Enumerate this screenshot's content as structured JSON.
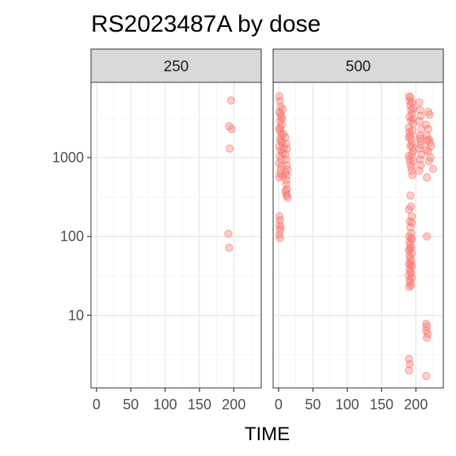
{
  "chart_data": {
    "type": "scatter",
    "title": "RS2023487A by dose",
    "xlabel": "TIME",
    "ylabel": "",
    "y_scale": "log10",
    "ylim": [
      1.2,
      9000
    ],
    "xlim": [
      -8,
      240
    ],
    "x_ticks": [
      0,
      50,
      100,
      150,
      200
    ],
    "x_tick_labels": [
      "0",
      "50",
      "100",
      "150",
      "200"
    ],
    "y_ticks": [
      10,
      100,
      1000
    ],
    "y_tick_labels": [
      "10",
      "100",
      "1000"
    ],
    "grid": true,
    "point_color": "#f8766d",
    "point_alpha": 0.35,
    "strip_fill": "#d9d9d9",
    "panels": [
      {
        "label": "250",
        "points": [
          [
            196,
            5300
          ],
          [
            193,
            2500
          ],
          [
            197,
            2300
          ],
          [
            194,
            1300
          ],
          [
            192,
            108
          ],
          [
            193,
            72
          ]
        ]
      },
      {
        "label": "500",
        "points": [
          [
            1,
            6000
          ],
          [
            2,
            5200
          ],
          [
            3,
            4400
          ],
          [
            1,
            3800
          ],
          [
            4,
            3300
          ],
          [
            2,
            2900
          ],
          [
            5,
            2600
          ],
          [
            1,
            2300
          ],
          [
            3,
            2100
          ],
          [
            4,
            1900
          ],
          [
            2,
            1700
          ],
          [
            5,
            1550
          ],
          [
            1,
            1400
          ],
          [
            3,
            1250
          ],
          [
            6,
            1150
          ],
          [
            2,
            1050
          ],
          [
            4,
            950
          ],
          [
            1,
            850
          ],
          [
            5,
            780
          ],
          [
            3,
            700
          ],
          [
            2,
            620
          ],
          [
            6,
            580
          ],
          [
            1,
            560
          ],
          [
            4,
            1600
          ],
          [
            2,
            2400
          ],
          [
            5,
            3100
          ],
          [
            3,
            3600
          ],
          [
            7,
            1300
          ],
          [
            6,
            4100
          ],
          [
            7,
            2000
          ],
          [
            10,
            1800
          ],
          [
            11,
            1500
          ],
          [
            12,
            1300
          ],
          [
            10,
            1100
          ],
          [
            11,
            950
          ],
          [
            12,
            800
          ],
          [
            13,
            700
          ],
          [
            10,
            650
          ],
          [
            11,
            460
          ],
          [
            12,
            400
          ],
          [
            10,
            380
          ],
          [
            11,
            350
          ],
          [
            12,
            330
          ],
          [
            13,
            310
          ],
          [
            11,
            520
          ],
          [
            12,
            600
          ],
          [
            1,
            180
          ],
          [
            2,
            160
          ],
          [
            1,
            140
          ],
          [
            3,
            130
          ],
          [
            2,
            120
          ],
          [
            1,
            105
          ],
          [
            2,
            95
          ],
          [
            190,
            6000
          ],
          [
            191,
            5200
          ],
          [
            192,
            4600
          ],
          [
            193,
            4000
          ],
          [
            194,
            3600
          ],
          [
            195,
            3100
          ],
          [
            196,
            2700
          ],
          [
            190,
            2400
          ],
          [
            191,
            2100
          ],
          [
            192,
            1900
          ],
          [
            193,
            1700
          ],
          [
            194,
            1500
          ],
          [
            195,
            1350
          ],
          [
            196,
            1200
          ],
          [
            190,
            1050
          ],
          [
            191,
            950
          ],
          [
            192,
            850
          ],
          [
            193,
            760
          ],
          [
            194,
            680
          ],
          [
            195,
            600
          ],
          [
            192,
            5800
          ],
          [
            194,
            5000
          ],
          [
            196,
            4200
          ],
          [
            191,
            3300
          ],
          [
            193,
            2900
          ],
          [
            195,
            2200
          ],
          [
            190,
            1800
          ],
          [
            192,
            1400
          ],
          [
            194,
            1100
          ],
          [
            196,
            900
          ],
          [
            192,
            330
          ],
          [
            193,
            240
          ],
          [
            190,
            220
          ],
          [
            194,
            180
          ],
          [
            191,
            155
          ],
          [
            192,
            130
          ],
          [
            193,
            110
          ],
          [
            190,
            100
          ],
          [
            194,
            92
          ],
          [
            191,
            85
          ],
          [
            192,
            78
          ],
          [
            193,
            72
          ],
          [
            190,
            66
          ],
          [
            194,
            61
          ],
          [
            191,
            57
          ],
          [
            192,
            52
          ],
          [
            193,
            48
          ],
          [
            190,
            45
          ],
          [
            194,
            42
          ],
          [
            191,
            39
          ],
          [
            192,
            36
          ],
          [
            193,
            34
          ],
          [
            190,
            32
          ],
          [
            194,
            30
          ],
          [
            191,
            28
          ],
          [
            192,
            26
          ],
          [
            193,
            24
          ],
          [
            190,
            23
          ],
          [
            192,
            44
          ],
          [
            191,
            70
          ],
          [
            194,
            150
          ],
          [
            193,
            95
          ],
          [
            190,
            2.8
          ],
          [
            191,
            2.4
          ],
          [
            190,
            2.0
          ],
          [
            205,
            5000
          ],
          [
            206,
            4000
          ],
          [
            207,
            3400
          ],
          [
            205,
            2900
          ],
          [
            208,
            2300
          ],
          [
            206,
            1900
          ],
          [
            207,
            1600
          ],
          [
            205,
            1300
          ],
          [
            208,
            1100
          ],
          [
            206,
            950
          ],
          [
            207,
            800
          ],
          [
            205,
            680
          ],
          [
            206,
            1750
          ],
          [
            207,
            1450
          ],
          [
            215,
            2600
          ],
          [
            218,
            2300
          ],
          [
            216,
            1900
          ],
          [
            219,
            1700
          ],
          [
            217,
            1650
          ],
          [
            220,
            1550
          ],
          [
            215,
            1250
          ],
          [
            218,
            1200
          ],
          [
            221,
            1000
          ],
          [
            222,
            1400
          ],
          [
            225,
            720
          ],
          [
            218,
            3800
          ],
          [
            220,
            3500
          ],
          [
            216,
            560
          ],
          [
            219,
            900
          ],
          [
            216,
            100
          ],
          [
            215,
            7.8
          ],
          [
            216,
            7.2
          ],
          [
            215,
            6.4
          ],
          [
            217,
            5.8
          ],
          [
            216,
            5.2
          ],
          [
            215,
            1.7
          ]
        ]
      }
    ]
  }
}
